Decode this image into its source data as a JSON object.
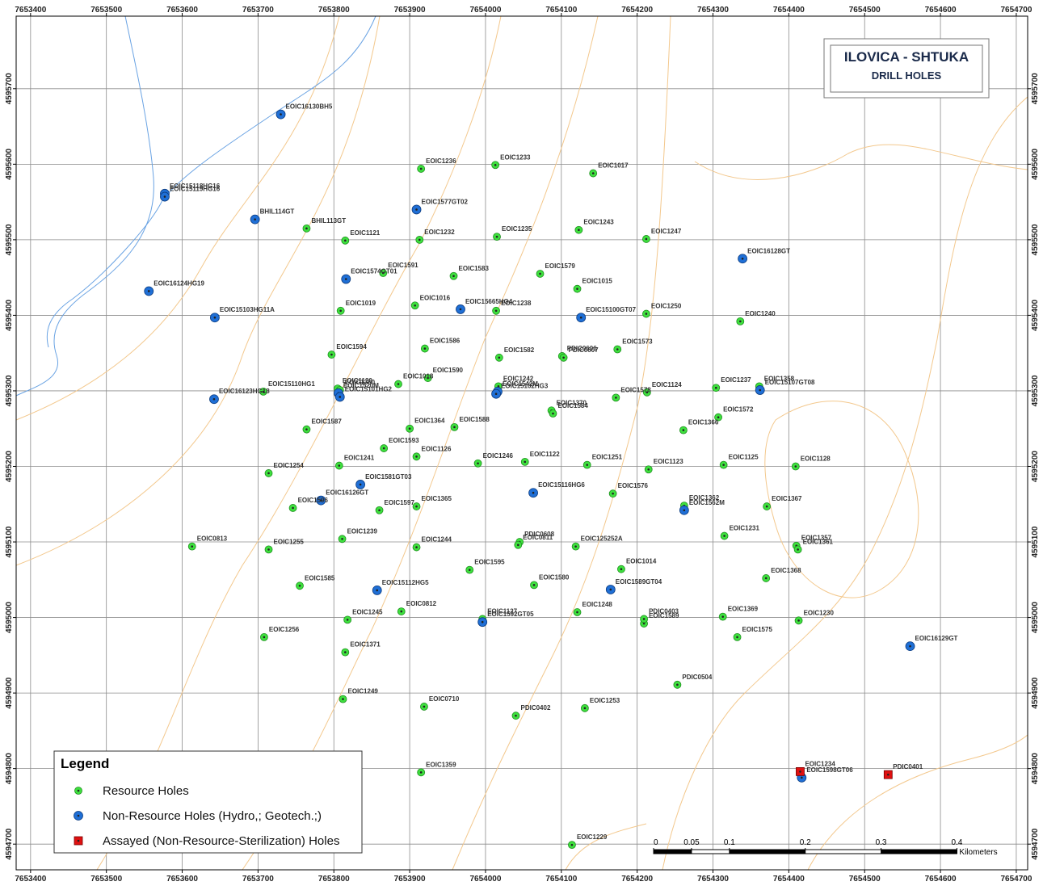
{
  "map": {
    "title": "ILOVICA - SHTUKA",
    "subtitle": "DRILL HOLES",
    "xlim": [
      7653381,
      7654715
    ],
    "ylim": [
      4594666,
      4595796
    ],
    "xticks": [
      7653400,
      7653500,
      7653600,
      7653700,
      7653800,
      7653900,
      7654000,
      7654100,
      7654200,
      7654300,
      7654400,
      7654500,
      7654600,
      7654700
    ],
    "yticks": [
      4594700,
      4594800,
      4594900,
      4595000,
      4595100,
      4595200,
      4595300,
      4595400,
      4595500,
      4595600,
      4595700
    ],
    "grid": true,
    "legend_title": "Legend",
    "scale_bar": {
      "ticks": [
        0,
        0.05,
        0.1,
        0.2,
        0.3,
        0.4
      ],
      "unit": "Kilometers"
    },
    "layers": [
      {
        "name": "Resource Holes",
        "symbol": "circle",
        "color": "#3ee03e",
        "holes": [
          {
            "label": "EOIC1236",
            "x": 7653915,
            "y": 4595594
          },
          {
            "label": "EOIC1233",
            "x": 7654013,
            "y": 4595599
          },
          {
            "label": "EOIC1017",
            "x": 7654142,
            "y": 4595588
          },
          {
            "label": "BHIL113GT",
            "x": 7653764,
            "y": 4595515
          },
          {
            "label": "EOIC1121",
            "x": 7653815,
            "y": 4595499
          },
          {
            "label": "EOIC1232",
            "x": 7653913,
            "y": 4595500
          },
          {
            "label": "EOIC1235",
            "x": 7654015,
            "y": 4595504
          },
          {
            "label": "EOIC1243",
            "x": 7654123,
            "y": 4595513
          },
          {
            "label": "EOIC1247",
            "x": 7654212,
            "y": 4595501
          },
          {
            "label": "EOIC1591",
            "x": 7653865,
            "y": 4595456
          },
          {
            "label": "EOIC1583",
            "x": 7653958,
            "y": 4595452
          },
          {
            "label": "EOIC1579",
            "x": 7654072,
            "y": 4595455
          },
          {
            "label": "EOIC1015",
            "x": 7654121,
            "y": 4595435
          },
          {
            "label": "EOIC1019",
            "x": 7653809,
            "y": 4595406
          },
          {
            "label": "EOIC1016",
            "x": 7653907,
            "y": 4595413
          },
          {
            "label": "EOIC1238",
            "x": 7654014,
            "y": 4595406
          },
          {
            "label": "EOIC1250",
            "x": 7654212,
            "y": 4595402
          },
          {
            "label": "EOIC1240",
            "x": 7654336,
            "y": 4595392
          },
          {
            "label": "EOIC1594",
            "x": 7653797,
            "y": 4595348
          },
          {
            "label": "EOIC1586",
            "x": 7653920,
            "y": 4595356
          },
          {
            "label": "EOIC1582",
            "x": 7654018,
            "y": 4595344
          },
          {
            "label": "PDIC0606",
            "x": 7654101,
            "y": 4595346
          },
          {
            "label": "PDIC0607",
            "x": 7654103,
            "y": 4595344
          },
          {
            "label": "EOIC1573",
            "x": 7654174,
            "y": 4595355
          },
          {
            "label": "EOIC1590",
            "x": 7653924,
            "y": 4595317
          },
          {
            "label": "EOIC1018",
            "x": 7653885,
            "y": 4595309
          },
          {
            "label": "EOIC15110HG1",
            "x": 7653707,
            "y": 4595299
          },
          {
            "label": "EOIC1120",
            "x": 7653805,
            "y": 4595303
          },
          {
            "label": "EOIC1360",
            "x": 7653808,
            "y": 4595301
          },
          {
            "label": "EOIC1242",
            "x": 7654017,
            "y": 4595306
          },
          {
            "label": "EOIC1578",
            "x": 7654172,
            "y": 4595291
          },
          {
            "label": "EOIC1124",
            "x": 7654213,
            "y": 4595298
          },
          {
            "label": "EOIC1237",
            "x": 7654304,
            "y": 4595304
          },
          {
            "label": "EOIC1358",
            "x": 7654361,
            "y": 4595306
          },
          {
            "label": "EOIC1370",
            "x": 7654087,
            "y": 4595274
          },
          {
            "label": "EOIC1584",
            "x": 7654089,
            "y": 4595270
          },
          {
            "label": "EOIC1572",
            "x": 7654307,
            "y": 4595265
          },
          {
            "label": "EOIC1366",
            "x": 7654261,
            "y": 4595248
          },
          {
            "label": "EOIC1587",
            "x": 7653764,
            "y": 4595249
          },
          {
            "label": "EOIC1364",
            "x": 7653900,
            "y": 4595250
          },
          {
            "label": "EOIC1588",
            "x": 7653959,
            "y": 4595252
          },
          {
            "label": "EOIC1593",
            "x": 7653866,
            "y": 4595224
          },
          {
            "label": "EOIC1126",
            "x": 7653909,
            "y": 4595213
          },
          {
            "label": "EOIC1241",
            "x": 7653807,
            "y": 4595201
          },
          {
            "label": "EOIC1246",
            "x": 7653990,
            "y": 4595204
          },
          {
            "label": "EOIC1122",
            "x": 7654052,
            "y": 4595206
          },
          {
            "label": "EOIC1251",
            "x": 7654134,
            "y": 4595202
          },
          {
            "label": "EOIC1123",
            "x": 7654215,
            "y": 4595196
          },
          {
            "label": "EOIC1125",
            "x": 7654314,
            "y": 4595202
          },
          {
            "label": "EOIC1128",
            "x": 7654409,
            "y": 4595200
          },
          {
            "label": "EOIC1254",
            "x": 7653714,
            "y": 4595191
          },
          {
            "label": "EOIC1596",
            "x": 7653746,
            "y": 4595145
          },
          {
            "label": "EOIC1597",
            "x": 7653860,
            "y": 4595142
          },
          {
            "label": "EOIC1365",
            "x": 7653909,
            "y": 4595147
          },
          {
            "label": "EOIC1576",
            "x": 7654168,
            "y": 4595164
          },
          {
            "label": "EOIC1362",
            "x": 7654262,
            "y": 4595148
          },
          {
            "label": "EOIC1367",
            "x": 7654371,
            "y": 4595147
          },
          {
            "label": "EOIC1231",
            "x": 7654315,
            "y": 4595108
          },
          {
            "label": "EOIC1239",
            "x": 7653811,
            "y": 4595104
          },
          {
            "label": "EOIC1244",
            "x": 7653909,
            "y": 4595093
          },
          {
            "label": "PDIC0608",
            "x": 7654045,
            "y": 4595100
          },
          {
            "label": "EOIC0811",
            "x": 7654043,
            "y": 4595096
          },
          {
            "label": "EOIC125252A",
            "x": 7654119,
            "y": 4595094
          },
          {
            "label": "EOIC1357",
            "x": 7654410,
            "y": 4595095
          },
          {
            "label": "EOIC1361",
            "x": 7654412,
            "y": 4595090
          },
          {
            "label": "EOIC0813",
            "x": 7653613,
            "y": 4595094
          },
          {
            "label": "EOIC1255",
            "x": 7653714,
            "y": 4595090
          },
          {
            "label": "EOIC1595",
            "x": 7653979,
            "y": 4595063
          },
          {
            "label": "EOIC1014",
            "x": 7654179,
            "y": 4595064
          },
          {
            "label": "EOIC1585",
            "x": 7653755,
            "y": 4595042
          },
          {
            "label": "EOIC1580",
            "x": 7654064,
            "y": 4595043
          },
          {
            "label": "EOIC1368",
            "x": 7654370,
            "y": 4595052
          },
          {
            "label": "EOIC1245",
            "x": 7653818,
            "y": 4594997
          },
          {
            "label": "EOIC0812",
            "x": 7653889,
            "y": 4595008
          },
          {
            "label": "EOIC1127",
            "x": 7653996,
            "y": 4594998
          },
          {
            "label": "EOIC1248",
            "x": 7654121,
            "y": 4595007
          },
          {
            "label": "EOIC1589",
            "x": 7654209,
            "y": 4594992
          },
          {
            "label": "PDIC0403",
            "x": 7654209,
            "y": 4594998
          },
          {
            "label": "EOIC1369",
            "x": 7654313,
            "y": 4595001
          },
          {
            "label": "EOIC1230",
            "x": 7654413,
            "y": 4594996
          },
          {
            "label": "EOIC1256",
            "x": 7653708,
            "y": 4594974
          },
          {
            "label": "EOIC1575",
            "x": 7654332,
            "y": 4594974
          },
          {
            "label": "EOIC1371",
            "x": 7653815,
            "y": 4594954
          },
          {
            "label": "PDIC0504",
            "x": 7654253,
            "y": 4594911
          },
          {
            "label": "EOIC1249",
            "x": 7653812,
            "y": 4594892
          },
          {
            "label": "EOIC0710",
            "x": 7653919,
            "y": 4594882
          },
          {
            "label": "PDIC0402",
            "x": 7654040,
            "y": 4594870
          },
          {
            "label": "EOIC1253",
            "x": 7654131,
            "y": 4594880
          },
          {
            "label": "EOIC1359",
            "x": 7653915,
            "y": 4594795
          },
          {
            "label": "EOIC1229",
            "x": 7654114,
            "y": 4594699
          }
        ]
      },
      {
        "name": "Non-Resource Holes (Hydro,; Geotech.;)",
        "symbol": "circle-large",
        "color": "#1f6fd6",
        "holes": [
          {
            "label": "EOIC16130BH5",
            "x": 7653730,
            "y": 4595666
          },
          {
            "label": "EOIC15118HG16",
            "x": 7653577,
            "y": 4595561
          },
          {
            "label": "EOIC15119HG16",
            "x": 7653577,
            "y": 4595557
          },
          {
            "label": "BHIL114GT",
            "x": 7653696,
            "y": 4595527
          },
          {
            "label": "EOIC1577GT02",
            "x": 7653909,
            "y": 4595540
          },
          {
            "label": "EOIC16128GT",
            "x": 7654339,
            "y": 4595475
          },
          {
            "label": "EOIC16124HG19",
            "x": 7653556,
            "y": 4595432
          },
          {
            "label": "EOIC1574GT01",
            "x": 7653816,
            "y": 4595448
          },
          {
            "label": "EOIC15103HG11A",
            "x": 7653643,
            "y": 4595397
          },
          {
            "label": "EOIC15665HG4",
            "x": 7653967,
            "y": 4595408
          },
          {
            "label": "EOIC15100GT07",
            "x": 7654126,
            "y": 4595397
          },
          {
            "label": "EOIC16123HG18",
            "x": 7653642,
            "y": 4595289
          },
          {
            "label": "EOIC1520M",
            "x": 7653806,
            "y": 4595297
          },
          {
            "label": "EOIC15101HG2",
            "x": 7653808,
            "y": 4595292
          },
          {
            "label": "EOIC1542M",
            "x": 7654016,
            "y": 4595299
          },
          {
            "label": "EOIC15102HG3",
            "x": 7654014,
            "y": 4595296
          },
          {
            "label": "EOIC15107GT08",
            "x": 7654362,
            "y": 4595301
          },
          {
            "label": "EOIC1581GT03",
            "x": 7653835,
            "y": 4595176
          },
          {
            "label": "EOIC16126GT",
            "x": 7653783,
            "y": 4595155
          },
          {
            "label": "EOIC15116HG6",
            "x": 7654063,
            "y": 4595165
          },
          {
            "label": "EOIC1562M",
            "x": 7654262,
            "y": 4595142
          },
          {
            "label": "EOIC15112HG5",
            "x": 7653857,
            "y": 4595036
          },
          {
            "label": "EOIC1589GT04",
            "x": 7654165,
            "y": 4595037
          },
          {
            "label": "EOIC1592GT05",
            "x": 7653996,
            "y": 4594994
          },
          {
            "label": "EOIC16129GT",
            "x": 7654560,
            "y": 4594962
          },
          {
            "label": "EOIC1598GT06",
            "x": 7654417,
            "y": 4594788
          }
        ]
      },
      {
        "name": "Assayed (Non-Resource-Sterilization) Holes",
        "symbol": "square",
        "color": "#e01010",
        "holes": [
          {
            "label": "EOIC1234",
            "x": 7654415,
            "y": 4594796
          },
          {
            "label": "PDIC0401",
            "x": 7654531,
            "y": 4594792
          }
        ]
      }
    ]
  }
}
